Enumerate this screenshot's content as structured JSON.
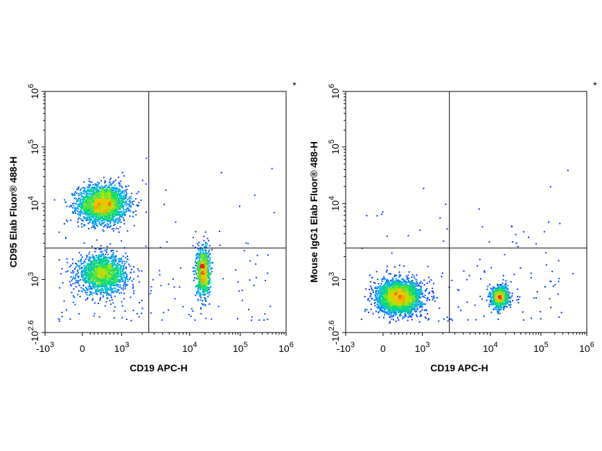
{
  "chart_data": [
    {
      "type": "scatter",
      "xlabel": "CD19 APC-H",
      "ylabel": "CD95 Elab Fluor® 488-H",
      "corner_mark": "*",
      "x_tick_labels": [
        {
          "base": "-10",
          "exp": "3"
        },
        {
          "base": "0",
          "exp": ""
        },
        {
          "base": "10",
          "exp": "3"
        },
        {
          "base": "10",
          "exp": "4"
        },
        {
          "base": "10",
          "exp": "5"
        },
        {
          "base": "10",
          "exp": "6"
        }
      ],
      "y_tick_labels": [
        {
          "base": "-10",
          "exp": "2.6"
        },
        {
          "base": "10",
          "exp": "3"
        },
        {
          "base": "10",
          "exp": "4"
        },
        {
          "base": "10",
          "exp": "5"
        },
        {
          "base": "10",
          "exp": "6"
        }
      ],
      "x_scale": "biexponential",
      "y_scale": "biexponential",
      "quadrant_gate": {
        "x": 2500,
        "y": 2600
      },
      "populations": [
        {
          "x": 500,
          "y": 10000,
          "spread_x": 0.45,
          "spread_y": 0.35,
          "count": 2600
        },
        {
          "x": 500,
          "y": 1200,
          "spread_x": 0.45,
          "spread_y": 0.35,
          "count": 1800
        },
        {
          "x": 18000,
          "y": 1300,
          "spread_x": 0.12,
          "spread_y": 0.45,
          "count": 1100
        }
      ]
    },
    {
      "type": "scatter",
      "xlabel": "CD19 APC-H",
      "ylabel": "Mouse IgG1 Elab Fluor® 488-H",
      "corner_mark": "*",
      "x_tick_labels": [
        {
          "base": "-10",
          "exp": "3"
        },
        {
          "base": "0",
          "exp": ""
        },
        {
          "base": "10",
          "exp": "3"
        },
        {
          "base": "10",
          "exp": "4"
        },
        {
          "base": "10",
          "exp": "5"
        },
        {
          "base": "10",
          "exp": "6"
        }
      ],
      "y_tick_labels": [
        {
          "base": "-10",
          "exp": "2.6"
        },
        {
          "base": "10",
          "exp": "3"
        },
        {
          "base": "10",
          "exp": "4"
        },
        {
          "base": "10",
          "exp": "5"
        },
        {
          "base": "10",
          "exp": "6"
        }
      ],
      "x_scale": "biexponential",
      "y_scale": "biexponential",
      "quadrant_gate": {
        "x": 2500,
        "y": 2600
      },
      "populations": [
        {
          "x": 400,
          "y": 650,
          "spread_x": 0.4,
          "spread_y": 0.3,
          "count": 3200
        },
        {
          "x": 15000,
          "y": 650,
          "spread_x": 0.16,
          "spread_y": 0.2,
          "count": 900
        }
      ]
    }
  ]
}
